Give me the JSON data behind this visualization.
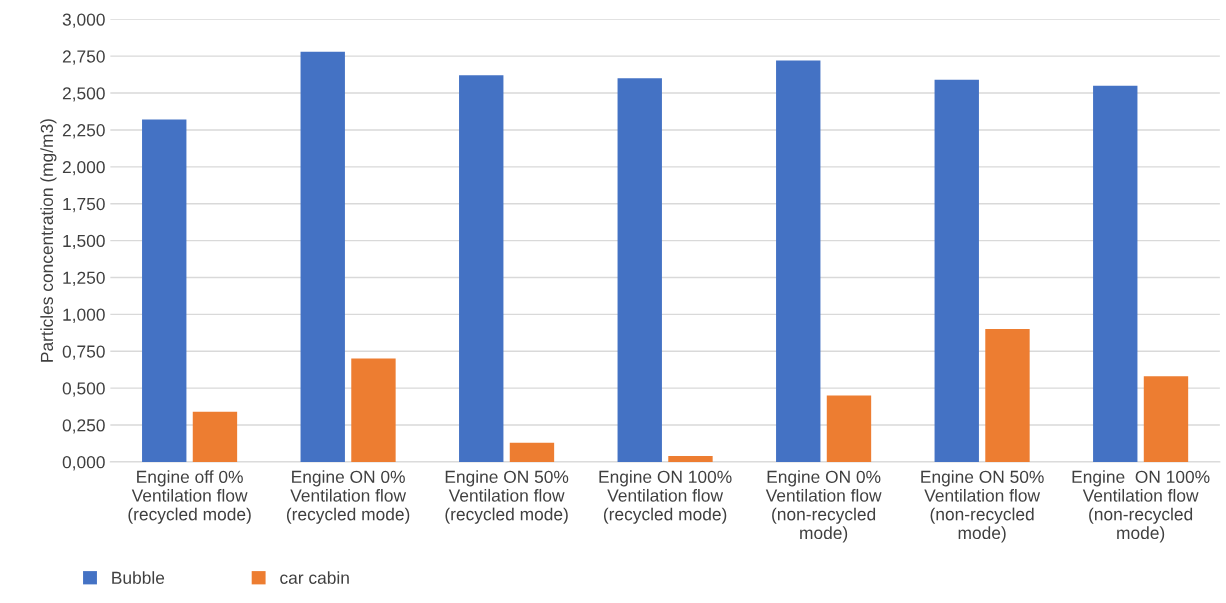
{
  "chart_data": {
    "type": "bar",
    "ylabel": "Particles concentration (mg/m3)",
    "categories": [
      "Engine off 0%\nVentilation flow\n(recycled mode)",
      "Engine ON 0%\nVentilation flow\n(recycled mode)",
      "Engine ON 50%\nVentilation flow\n(recycled mode)",
      "Engine ON 100%\nVentilation flow\n(recycled mode)",
      "Engine ON 0%\nVentilation flow\n(non-recycled\nmode)",
      "Engine ON 50%\nVentilation flow\n(non-recycled\nmode)",
      "Engine  ON 100%\nVentilation flow\n(non-recycled\nmode)"
    ],
    "series": [
      {
        "name": "Bubble",
        "color": "#4472c4",
        "values": [
          2.32,
          2.78,
          2.62,
          2.6,
          2.72,
          2.59,
          2.55
        ]
      },
      {
        "name": "car cabin",
        "color": "#ed7d31",
        "values": [
          0.34,
          0.7,
          0.13,
          0.04,
          0.45,
          0.9,
          0.58
        ]
      }
    ],
    "ylim": [
      0,
      3
    ],
    "yticks": [
      {
        "value": 0,
        "label": "0,000"
      },
      {
        "value": 0.25,
        "label": "0,250"
      },
      {
        "value": 0.5,
        "label": "0,500"
      },
      {
        "value": 0.75,
        "label": "0,750"
      },
      {
        "value": 1,
        "label": "1,000"
      },
      {
        "value": 1.25,
        "label": "1,250"
      },
      {
        "value": 1.5,
        "label": "1,500"
      },
      {
        "value": 1.75,
        "label": "1,750"
      },
      {
        "value": 2,
        "label": "2,000"
      },
      {
        "value": 2.25,
        "label": "2,250"
      },
      {
        "value": 2.5,
        "label": "2,500"
      },
      {
        "value": 2.75,
        "label": "2,750"
      },
      {
        "value": 3,
        "label": "3,000"
      }
    ],
    "grid": "y",
    "legend": "bottom left"
  }
}
